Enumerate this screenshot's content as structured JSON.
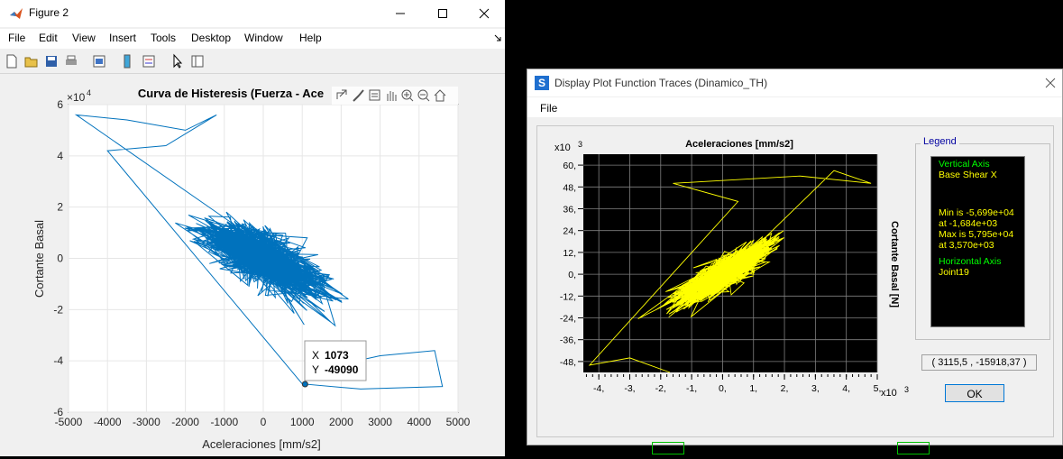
{
  "matlab": {
    "title": "Figure 2",
    "menu": [
      "File",
      "Edit",
      "View",
      "Insert",
      "Tools",
      "Desktop",
      "Window",
      "Help"
    ],
    "plot": {
      "title": "Curva de Histeresis (Fuerza - Ace",
      "xlabel": "Aceleraciones [mm/s2]",
      "ylabel": "Cortante Basal",
      "y_exponent": "×10",
      "y_exponent_power": "4",
      "xticks": [
        "-5000",
        "-4000",
        "-3000",
        "-2000",
        "-1000",
        "0",
        "1000",
        "2000",
        "3000",
        "4000",
        "5000"
      ],
      "yticks": [
        "6",
        "4",
        "2",
        "0",
        "-2",
        "-4",
        "-6"
      ],
      "line_color": "#0072bd",
      "datatip": {
        "x_label": "X",
        "x_value": "1073",
        "y_label": "Y",
        "y_value": "-49090"
      }
    }
  },
  "sap": {
    "title": "Display Plot Function Traces  (Dinamico_TH)",
    "menu_file": "File",
    "plot_title": "Aceleraciones [mm/s2]",
    "right_label": "Cortante Basal [N]",
    "y_scale": "x10",
    "y_scale_power": "3",
    "x_scale": "x10",
    "x_scale_power": "3",
    "yticks": [
      "60,",
      "48,",
      "36,",
      "24,",
      "12,",
      "0,",
      "-12,",
      "-24,",
      "-36,",
      "-48,"
    ],
    "xticks": [
      "-4,",
      "-3,",
      "-2,",
      "-1,",
      "0,",
      "1,",
      "2,",
      "3,",
      "4,",
      "5,"
    ],
    "trace_color": "#ffff00",
    "legend": {
      "title": "Legend",
      "vertical_axis": "Vertical Axis",
      "vertical_name": "Base Shear X",
      "min_line": "Min is -5,699e+04",
      "min_at": "at -1,684e+03",
      "max_line": "Max is 5,795e+04",
      "max_at": "at 3,570e+03",
      "horizontal_axis": "Horizontal Axis",
      "horizontal_name": "Joint19"
    },
    "coordinates": "( 3115,5 , -15918,37 )",
    "ok_label": "OK"
  }
}
